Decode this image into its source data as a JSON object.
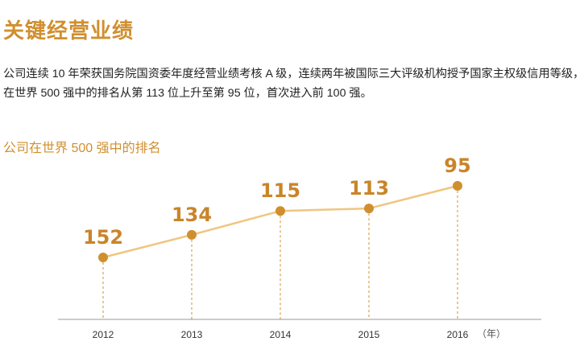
{
  "page": {
    "title": "关键经营业绩",
    "intro_line1": "公司连续 10 年荣获国务院国资委年度经营业绩考核 A 级，连续两年被国际三大评级机构授予国家主权级信用等级，",
    "intro_line2": "在世界 500 强中的排名从第 113 位上升至第 95 位，首次进入前 100 强。"
  },
  "chart_data": {
    "type": "line",
    "title": "公司在世界 500 强中的排名",
    "x_unit": "（年）",
    "categories": [
      "2012",
      "2013",
      "2014",
      "2015",
      "2016"
    ],
    "values": [
      152,
      134,
      115,
      113,
      95
    ],
    "series": [
      {
        "name": "",
        "values": [
          152,
          134,
          115,
          113,
          95
        ]
      }
    ],
    "colors": {
      "line": "#efc680",
      "marker": "#d08f2f",
      "label": "#c9852a",
      "axis": "#999999"
    },
    "grid": false,
    "y_inverted": true
  }
}
